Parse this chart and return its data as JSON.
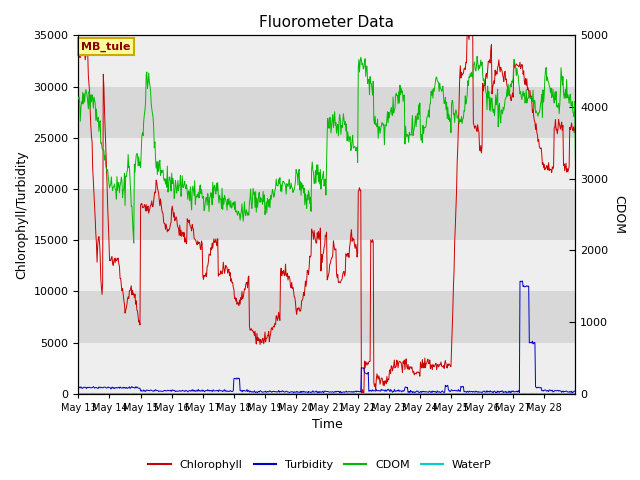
{
  "title": "Fluorometer Data",
  "xlabel": "Time",
  "ylabel_left": "Chlorophyll/Turbidity",
  "ylabel_right": "CDOM",
  "annotation": "MB_tule",
  "ylim_left": [
    0,
    35000
  ],
  "ylim_right": [
    0,
    5000
  ],
  "colors": {
    "chlorophyll": "#cc0000",
    "turbidity": "#0000cc",
    "cdom": "#00bb00",
    "waterp": "#00cccc",
    "background_dark": "#d8d8d8",
    "background_light": "#eeeeee",
    "annotation_bg": "#ffff99",
    "annotation_border": "#ccaa00"
  },
  "xtick_labels": [
    "May 13",
    "May 14",
    "May 15",
    "May 16",
    "May 17",
    "May 18",
    "May 19",
    "May 20",
    "May 21",
    "May 22",
    "May 23",
    "May 24",
    "May 25",
    "May 26",
    "May 27",
    "May 28"
  ],
  "title_fontsize": 11,
  "axis_label_fontsize": 9,
  "tick_fontsize": 7
}
